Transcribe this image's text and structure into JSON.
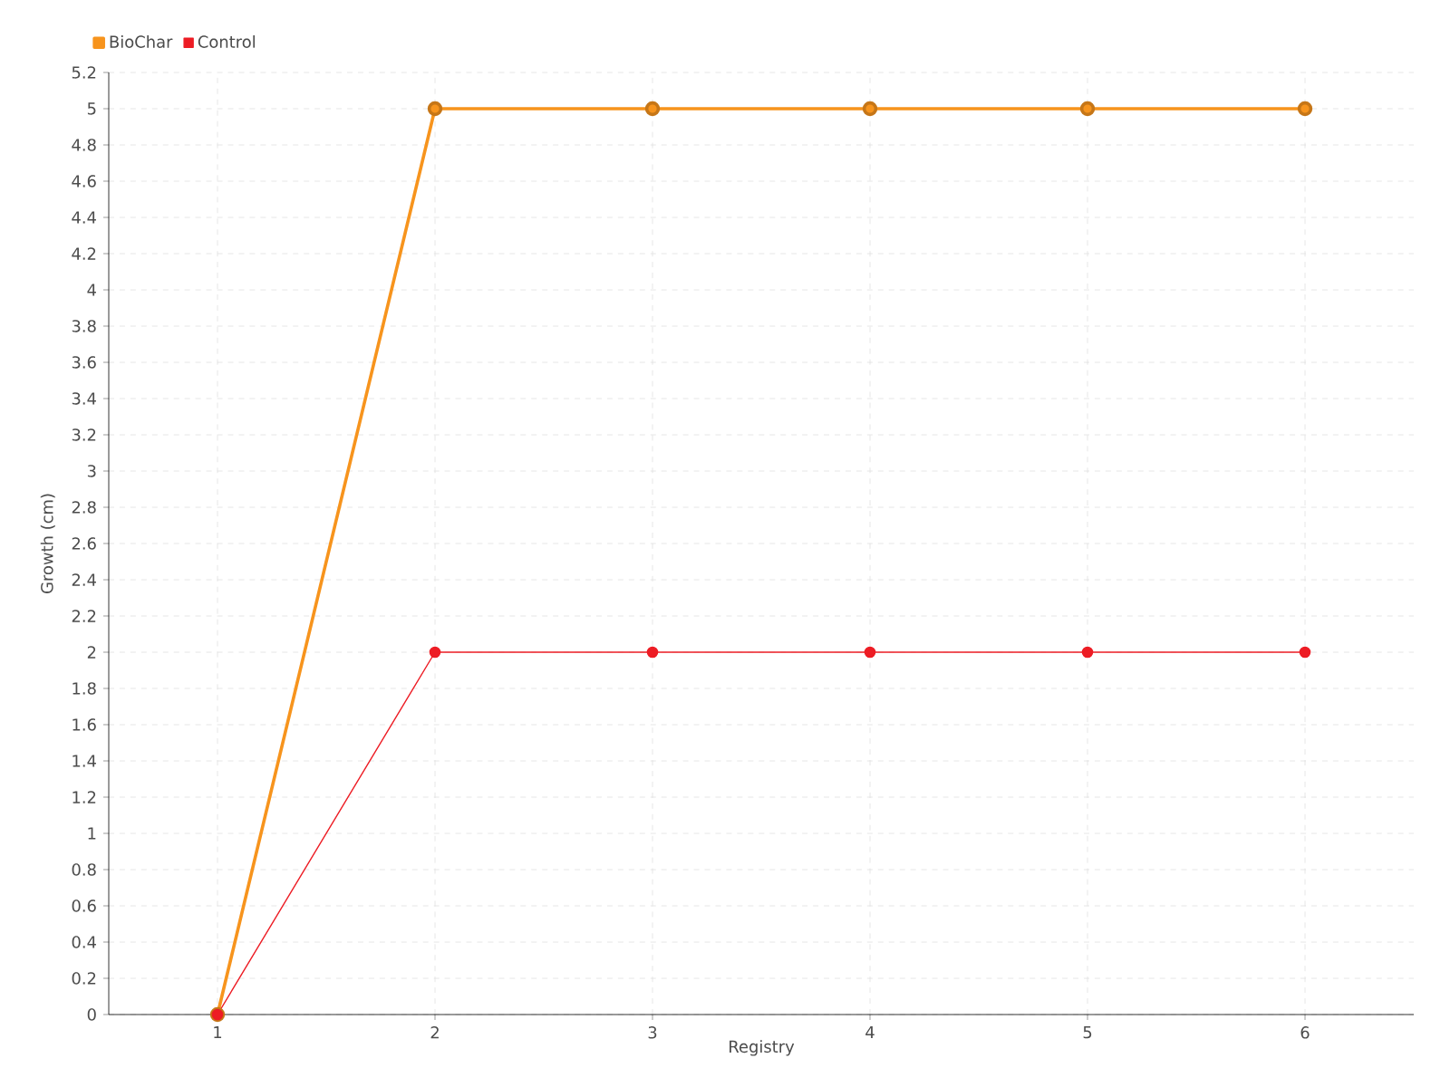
{
  "chart_data": {
    "type": "line",
    "xlabel": "Registry",
    "ylabel": "Growth (cm)",
    "categories": [
      "1",
      "2",
      "3",
      "4",
      "5",
      "6"
    ],
    "series": [
      {
        "name": "BioChar",
        "color": "#f7941d",
        "values": [
          0,
          5,
          5,
          5,
          5,
          5
        ]
      },
      {
        "name": "Control",
        "color": "#ed1c24",
        "values": [
          0,
          2,
          2,
          2,
          2,
          2
        ]
      }
    ],
    "ylim": [
      0,
      5.2
    ],
    "yticks": [
      0,
      0.2,
      0.4,
      0.6,
      0.8,
      1,
      1.2,
      1.4,
      1.6,
      1.8,
      2,
      2.2,
      2.4,
      2.6,
      2.8,
      3,
      3.2,
      3.4,
      3.6,
      3.8,
      4,
      4.2,
      4.4,
      4.6,
      4.8,
      5,
      5.2
    ],
    "grid": true,
    "legend": "top left",
    "marker": "circle",
    "line_style": "solid"
  }
}
